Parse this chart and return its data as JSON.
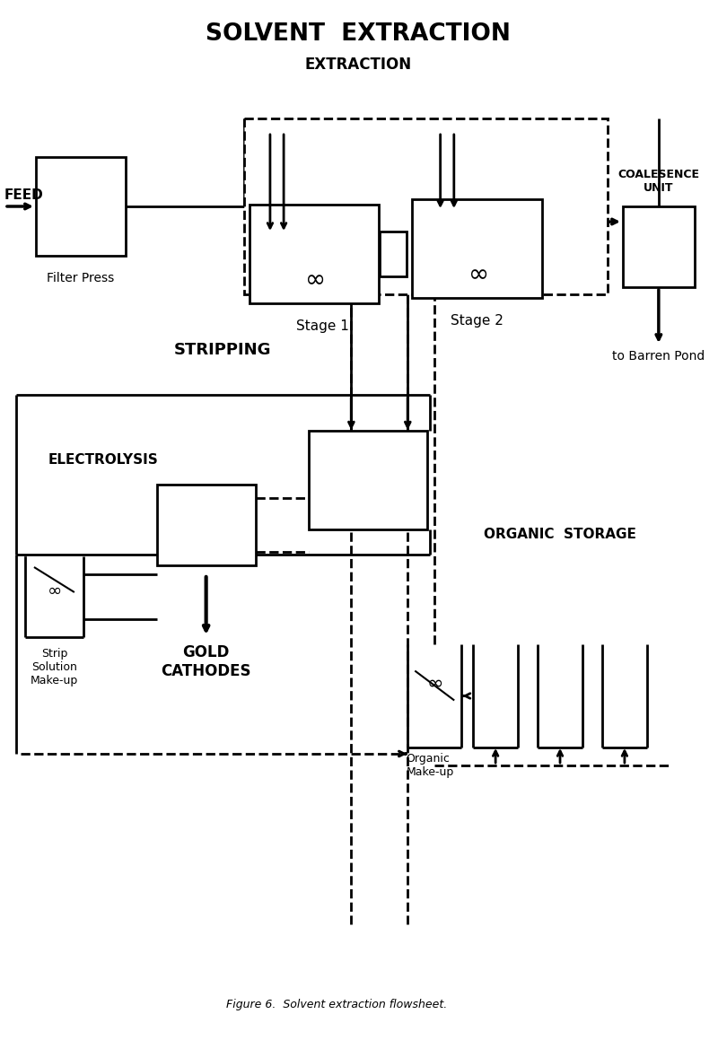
{
  "title": "SOLVENT  EXTRACTION",
  "subtitle": "EXTRACTION",
  "stripping_label": "STRIPPING",
  "electrolysis_label": "ELECTROLYSIS",
  "organic_storage_label": "ORGANIC  STORAGE",
  "filter_press_label": "Filter Press",
  "stage1_label": "Stage 1",
  "stage2_label": "Stage 2",
  "coalesence_label": "COALESENCE\nUNIT",
  "barren_pond_label": "to Barren Pond",
  "strip_solution_label": "Strip\nSolution\nMake-up",
  "gold_cathodes_label": "GOLD\nCATHODES",
  "organic_makeup_label": "Organic\nMake-up",
  "feed_label": "FEED",
  "figure_caption": "Figure 6.  Solvent extraction flowsheet.",
  "bg_color": "#ffffff",
  "line_color": "#000000",
  "lw": 2.0
}
